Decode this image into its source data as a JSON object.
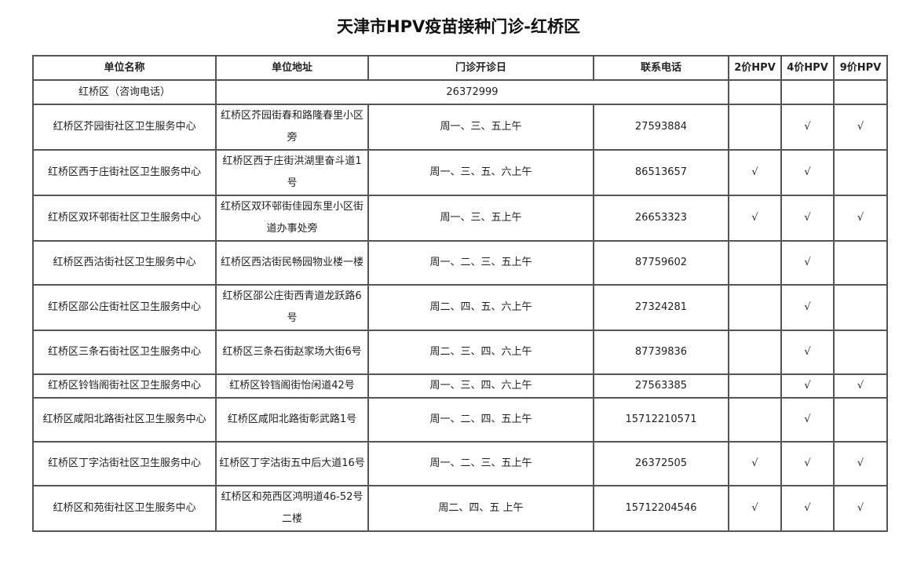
{
  "title": "天津市HPV疫苗接种门诊-红桥区",
  "headers": [
    "单位名称",
    "单位地址",
    "门诊开诊日",
    "联系电话",
    "2价HPV",
    "4价HPV",
    "9价HPV"
  ],
  "consult": {
    "label": "红桥区（咨询电话）",
    "phone": "26372999"
  },
  "rows": [
    {
      "name": "红桥区芥园街社区卫生服务中心",
      "address": "红桥区芥园街春和路隆春里小区旁",
      "days": "周一、三、五上午",
      "phone": "27593884",
      "hpv2": "",
      "hpv4": "√",
      "hpv9": "√"
    },
    {
      "name": "红桥区西于庄街社区卫生服务中心",
      "address": "红桥区西于庄街洪湖里奋斗道1号",
      "days": "周一、三、五、六上午",
      "phone": "86513657",
      "hpv2": "√",
      "hpv4": "√",
      "hpv9": ""
    },
    {
      "name": "红桥区双环邨街社区卫生服务中心",
      "address": "红桥区双环邨街佳园东里小区街道办事处旁",
      "days": "周一、三、五上午",
      "phone": "26653323",
      "hpv2": "√",
      "hpv4": "√",
      "hpv9": "√"
    },
    {
      "name": "红桥区西沽街社区卫生服务中心",
      "address": "红桥区西沽街民畅园物业楼一楼",
      "days": "周一、二、三、五上午",
      "phone": "87759602",
      "hpv2": "",
      "hpv4": "√",
      "hpv9": ""
    },
    {
      "name": "红桥区邵公庄街社区卫生服务中心",
      "address": "红桥区邵公庄街西青道龙跃路6号",
      "days": "周二、四、五、六上午",
      "phone": "27324281",
      "hpv2": "",
      "hpv4": "√",
      "hpv9": ""
    },
    {
      "name": "红桥区三条石街社区卫生服务中心",
      "address": "红桥区三条石街赵家场大街6号",
      "days": "周二、三、四、六上午",
      "phone": "87739836",
      "hpv2": "",
      "hpv4": "√",
      "hpv9": ""
    },
    {
      "name": "红桥区铃铛阁街社区卫生服务中心",
      "address": "红桥区铃铛阁街怡闲道42号",
      "days": "周一、三、四、六上午",
      "phone": "27563385",
      "hpv2": "",
      "hpv4": "√",
      "hpv9": "√"
    },
    {
      "name": "红桥区咸阳北路街社区卫生服务中心",
      "address": "红桥区咸阳北路街彰武路1号",
      "days": "周一、二、四、五上午",
      "phone": "15712210571",
      "hpv2": "",
      "hpv4": "√",
      "hpv9": ""
    },
    {
      "name": "红桥区丁字沽街社区卫生服务中心",
      "address": "红桥区丁字沽街五中后大道16号",
      "days": "周一、二、三、五上午",
      "phone": "26372505",
      "hpv2": "√",
      "hpv4": "√",
      "hpv9": "√"
    },
    {
      "name": "红桥区和苑街社区卫生服务中心",
      "address": "红桥区和苑西区鸿明道46-52号二楼",
      "days": "周二、四、五 上午",
      "phone": "15712204546",
      "hpv2": "√",
      "hpv4": "√",
      "hpv9": "√"
    }
  ]
}
